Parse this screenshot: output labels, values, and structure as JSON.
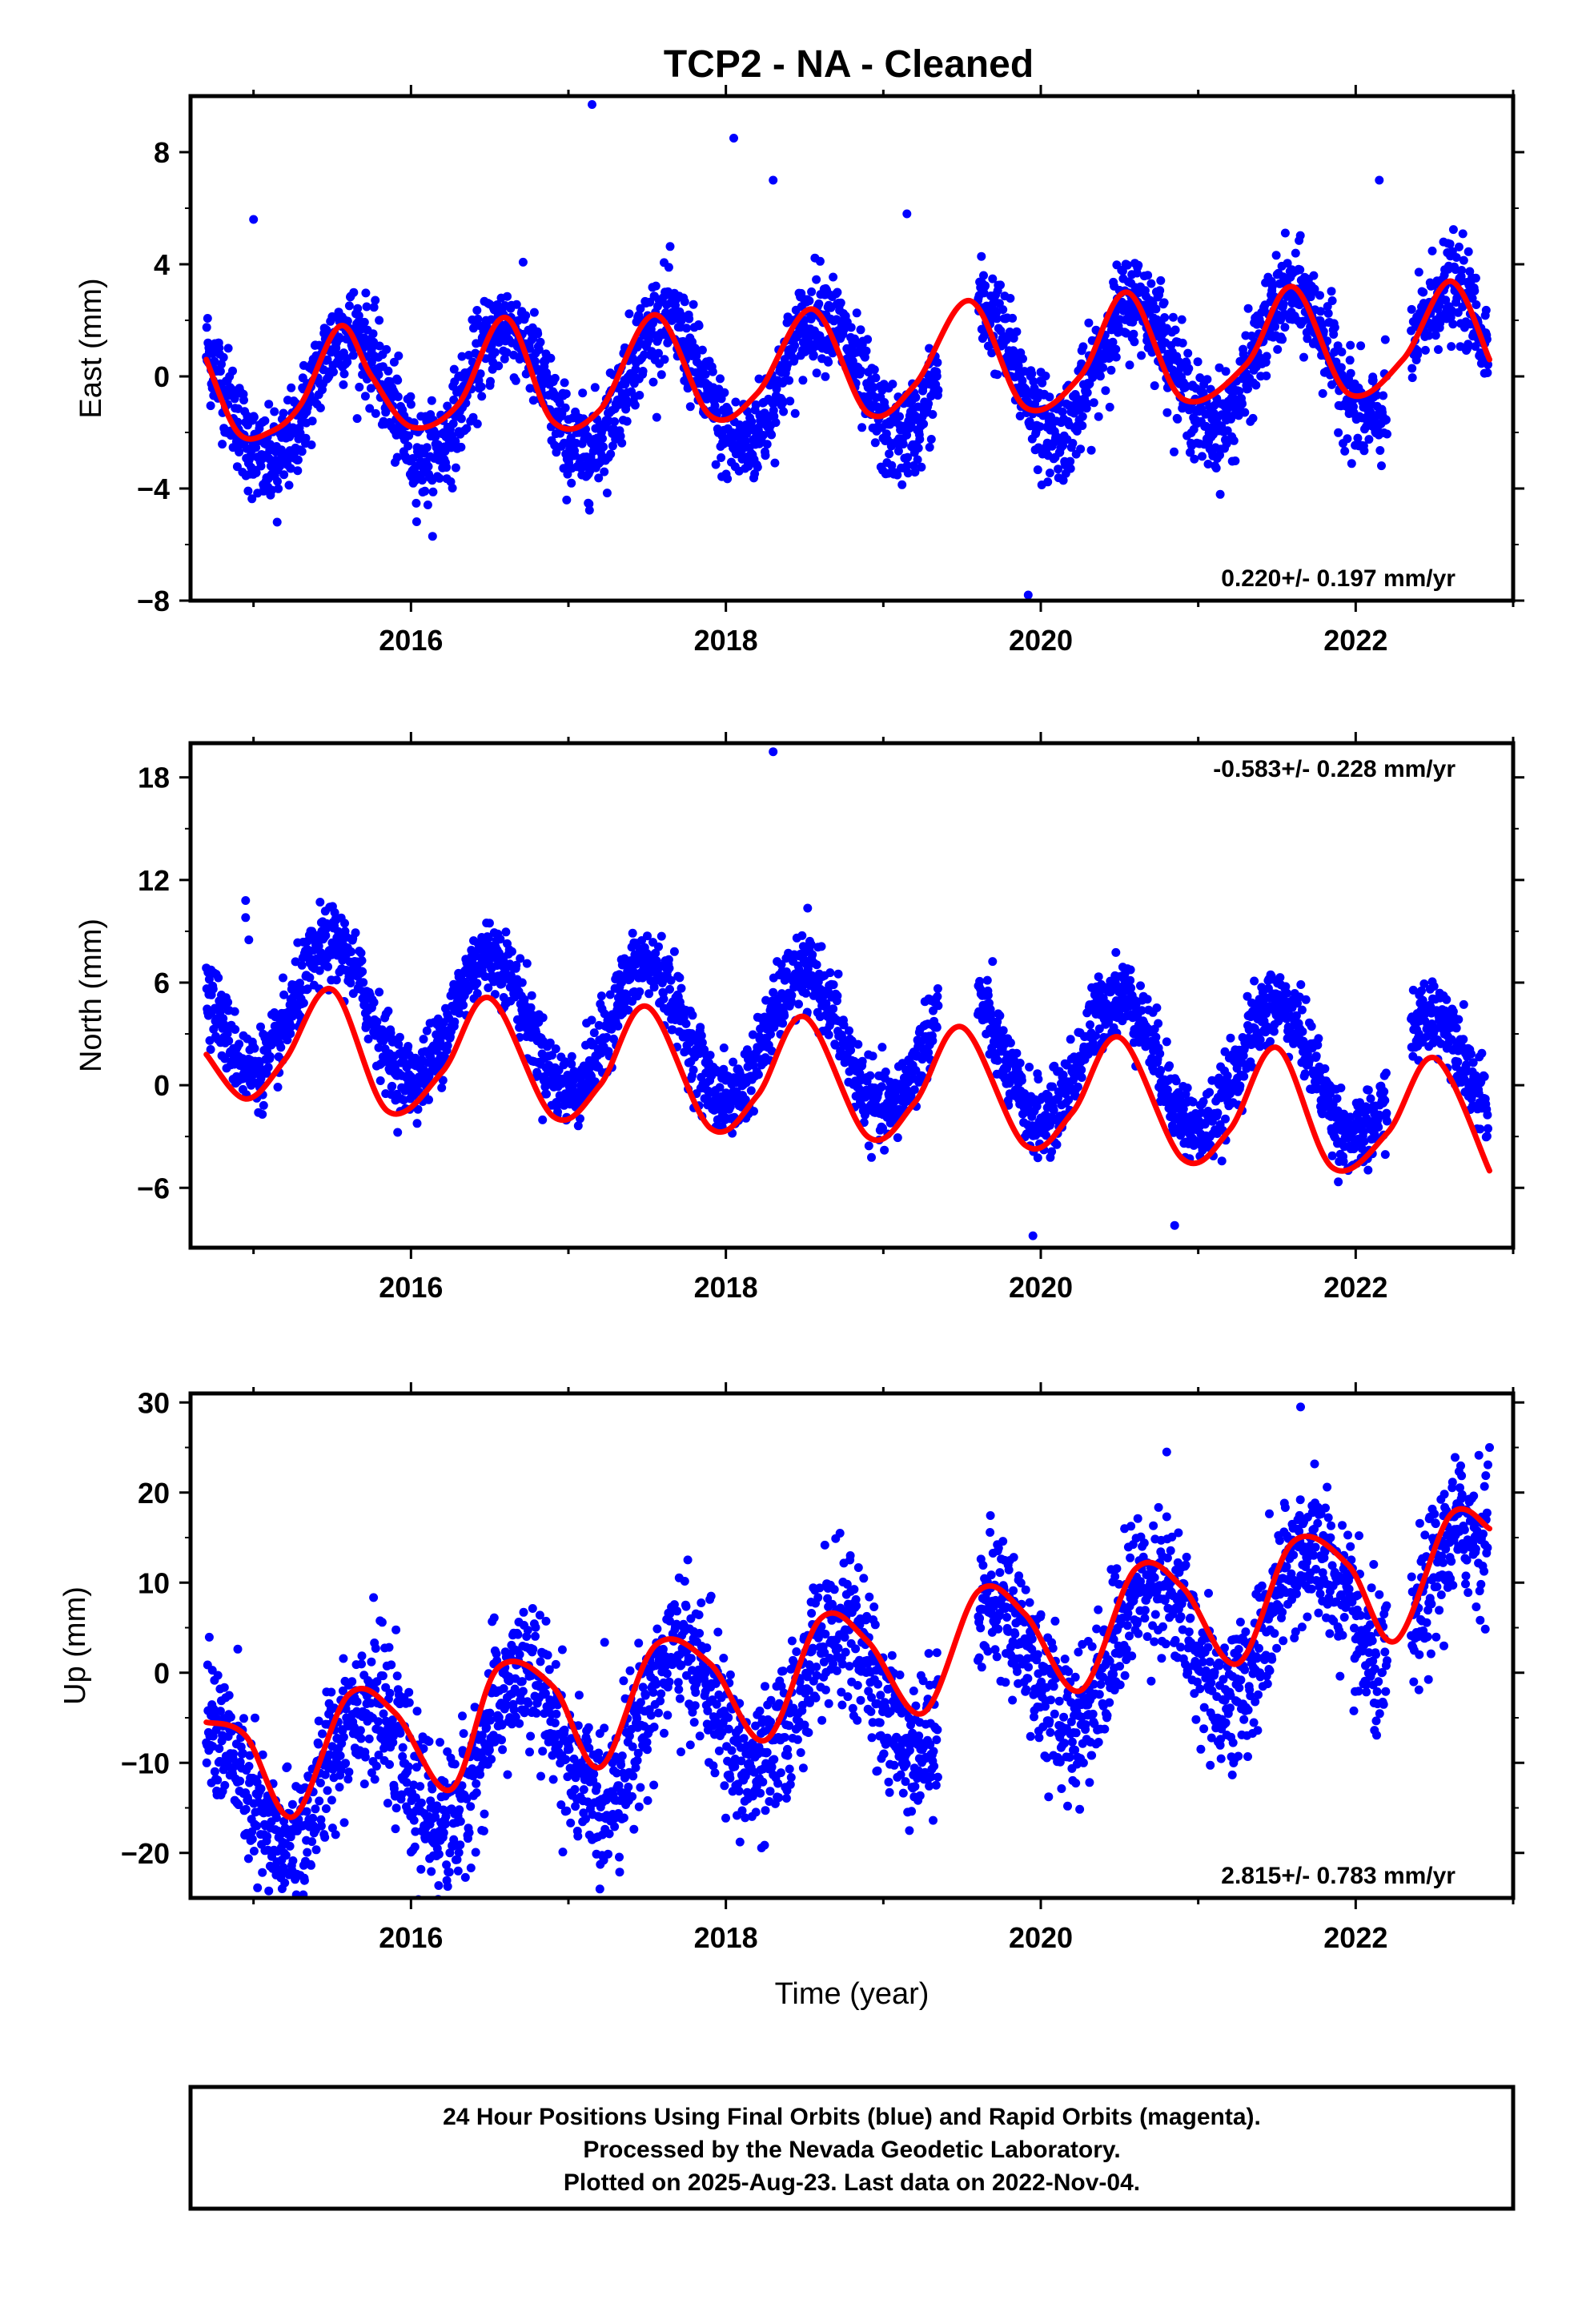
{
  "title": "TCP2  - NA - Cleaned",
  "colors": {
    "final_orbits": "#0000ff",
    "fit": "#ff0000",
    "frame": "#000000"
  },
  "chart_data": [
    {
      "type": "scatter",
      "panel": "east",
      "ylabel": "East (mm)",
      "xlabel": "",
      "rate_label": "0.220+/- 0.197 mm/yr",
      "rate_position": "bottom-right",
      "xlim": [
        2014.6,
        2023.0
      ],
      "ylim": [
        -8,
        10
      ],
      "yticks": [
        -8,
        -4,
        0,
        4,
        8
      ],
      "yticklabels": [
        "−8",
        "−4",
        "0",
        "4",
        "8"
      ],
      "xticks": [
        2016,
        2018,
        2020,
        2022
      ],
      "xticklabels": [
        "2016",
        "2018",
        "2020",
        "2022"
      ],
      "series": [
        {
          "role": "observations",
          "mean": 0.0,
          "trend_mm_per_yr": 0.22,
          "seasonal_amp": 2.3,
          "seasonal_peak": 0.6,
          "noise_sd": 0.85,
          "outliers": [
            [
              2017.15,
              9.7
            ],
            [
              2018.05,
              8.5
            ],
            [
              2018.3,
              7.0
            ],
            [
              2019.15,
              5.8
            ],
            [
              2019.92,
              -7.8
            ],
            [
              2022.15,
              7.0
            ],
            [
              2015.0,
              5.6
            ],
            [
              2015.15,
              -5.2
            ]
          ]
        },
        {
          "role": "fit",
          "x": [
            2014.7,
            2014.9,
            2015.1,
            2015.3,
            2015.55,
            2015.75,
            2016.0,
            2016.3,
            2016.6,
            2016.9,
            2017.2,
            2017.55,
            2017.9,
            2018.2,
            2018.55,
            2018.9,
            2019.2,
            2019.55,
            2019.9,
            2020.25,
            2020.55,
            2020.9,
            2021.3,
            2021.6,
            2021.95,
            2022.3,
            2022.6,
            2022.85
          ],
          "y": [
            0.6,
            -2.0,
            -2.0,
            -1.0,
            1.8,
            0.0,
            -1.8,
            -1.0,
            2.1,
            -1.6,
            -1.2,
            2.2,
            -1.4,
            -0.6,
            2.4,
            -1.3,
            -0.3,
            2.7,
            -1.1,
            0.0,
            3.0,
            -0.8,
            0.4,
            3.2,
            -0.6,
            0.6,
            3.4,
            0.6
          ]
        }
      ]
    },
    {
      "type": "scatter",
      "panel": "north",
      "ylabel": "North (mm)",
      "xlabel": "",
      "rate_label": "-0.583+/- 0.228 mm/yr",
      "rate_position": "top-right",
      "xlim": [
        2014.6,
        2023.0
      ],
      "ylim": [
        -9.5,
        20
      ],
      "yticks": [
        -6,
        0,
        6,
        12,
        18
      ],
      "yticklabels": [
        "−6",
        "0",
        "6",
        "12",
        "18"
      ],
      "xticks": [
        2016,
        2018,
        2020,
        2022
      ],
      "xticklabels": [
        "2016",
        "2018",
        "2020",
        "2022"
      ],
      "series": [
        {
          "role": "observations",
          "mean": 2.5,
          "trend_mm_per_yr": -0.58,
          "seasonal_amp": 3.8,
          "seasonal_peak": 0.5,
          "noise_sd": 1.1,
          "outliers": [
            [
              2018.3,
              19.5
            ],
            [
              2014.95,
              10.8
            ],
            [
              2014.95,
              9.8
            ],
            [
              2014.97,
              8.5
            ],
            [
              2019.95,
              -8.8
            ],
            [
              2020.85,
              -8.2
            ]
          ]
        },
        {
          "role": "fit",
          "x": [
            2014.7,
            2014.95,
            2015.2,
            2015.5,
            2015.85,
            2016.2,
            2016.5,
            2016.9,
            2017.2,
            2017.5,
            2017.9,
            2018.2,
            2018.5,
            2018.9,
            2019.2,
            2019.5,
            2019.9,
            2020.2,
            2020.5,
            2020.9,
            2021.2,
            2021.5,
            2021.85,
            2022.2,
            2022.5,
            2022.85
          ],
          "y": [
            1.8,
            -0.8,
            1.5,
            5.6,
            -1.5,
            0.8,
            5.1,
            -1.8,
            0.0,
            4.6,
            -2.5,
            -0.6,
            4.0,
            -3.0,
            -1.0,
            3.4,
            -3.5,
            -1.6,
            2.8,
            -4.3,
            -2.6,
            2.2,
            -4.8,
            -2.8,
            1.6,
            -5.0
          ]
        }
      ]
    },
    {
      "type": "scatter",
      "panel": "up",
      "ylabel": "Up (mm)",
      "xlabel": "Time (year)",
      "rate_label": "2.815+/- 0.783 mm/yr",
      "rate_position": "bottom-right",
      "xlim": [
        2014.6,
        2023.0
      ],
      "ylim": [
        -25,
        31
      ],
      "yticks": [
        -20,
        -10,
        0,
        10,
        20,
        30
      ],
      "yticklabels": [
        "−20",
        "−10",
        "0",
        "10",
        "20",
        "30"
      ],
      "xticks": [
        2016,
        2018,
        2020,
        2022
      ],
      "xticklabels": [
        "2016",
        "2018",
        "2020",
        "2022"
      ],
      "series": [
        {
          "role": "observations",
          "mean": -2.0,
          "trend_mm_per_yr": 2.8,
          "seasonal_amp": 7.5,
          "seasonal_peak": 0.7,
          "noise_sd": 4.0,
          "outliers": [
            [
              2021.65,
              29.5
            ],
            [
              2017.2,
              -24.0
            ],
            [
              2016.3,
              -22.0
            ],
            [
              2022.85,
              25.0
            ],
            [
              2020.8,
              24.5
            ]
          ]
        },
        {
          "role": "fit",
          "x": [
            2014.7,
            2014.95,
            2015.25,
            2015.6,
            2015.9,
            2016.25,
            2016.55,
            2016.9,
            2017.2,
            2017.55,
            2017.9,
            2018.25,
            2018.6,
            2018.9,
            2019.25,
            2019.6,
            2019.9,
            2020.25,
            2020.6,
            2020.9,
            2021.25,
            2021.6,
            2021.95,
            2022.25,
            2022.6,
            2022.85
          ],
          "y": [
            -5.5,
            -7.0,
            -16.0,
            -2.5,
            -4.5,
            -13.0,
            0.5,
            -1.5,
            -10.5,
            3.0,
            1.0,
            -7.5,
            6.0,
            3.5,
            -4.5,
            9.0,
            6.5,
            -2.0,
            11.5,
            9.5,
            1.0,
            14.5,
            12.0,
            3.5,
            17.5,
            16.0
          ]
        }
      ]
    }
  ],
  "footer": {
    "line1": "24 Hour Positions Using Final Orbits (blue) and Rapid Orbits (magenta).",
    "line2": "Processed by the Nevada Geodetic Laboratory.",
    "line3": "Plotted on 2025-Aug-23. Last data on 2022-Nov-04."
  }
}
